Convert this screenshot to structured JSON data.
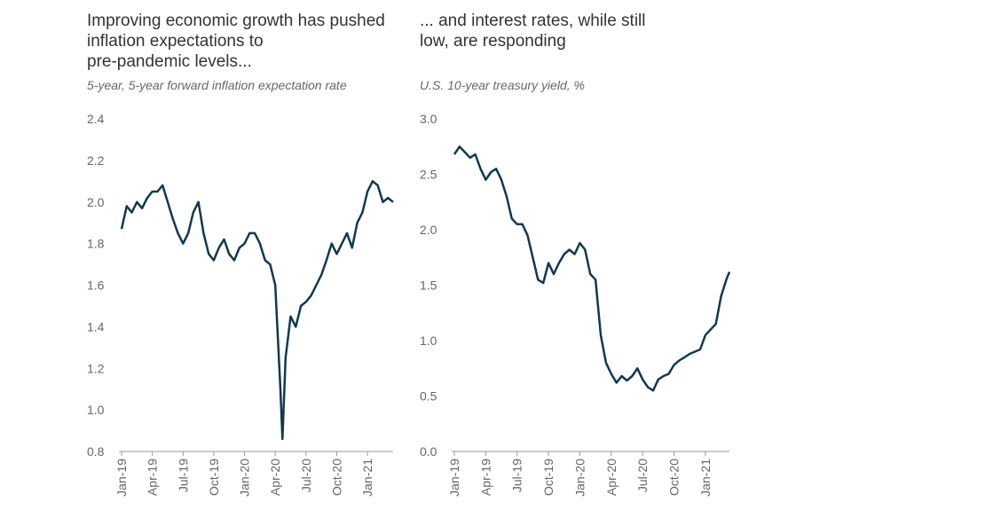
{
  "chart_data": [
    {
      "type": "line",
      "title": "Improving economic growth has pushed inflation expectations to pre-pandemic levels...",
      "subtitle": "5-year, 5-year forward inflation expectation rate",
      "x": [
        0,
        0.5,
        1,
        1.5,
        2,
        2.5,
        3,
        3.5,
        4,
        4.5,
        5,
        5.5,
        6,
        6.5,
        7,
        7.5,
        8,
        8.5,
        9,
        9.5,
        10,
        10.5,
        11,
        11.5,
        12,
        12.5,
        13,
        13.5,
        14,
        14.5,
        15,
        15.5,
        15.7,
        16,
        16.5,
        17,
        17.5,
        18,
        18.5,
        19,
        19.5,
        20,
        20.5,
        21,
        21.5,
        22,
        22.5,
        23,
        23.5,
        24,
        24.5,
        25,
        25.5,
        26,
        26.5
      ],
      "series": [
        {
          "name": "5y5y",
          "color": "#12384f",
          "values": [
            1.87,
            1.98,
            1.95,
            2.0,
            1.97,
            2.02,
            2.05,
            2.05,
            2.08,
            2.0,
            1.92,
            1.85,
            1.8,
            1.85,
            1.95,
            2.0,
            1.85,
            1.75,
            1.72,
            1.78,
            1.82,
            1.75,
            1.72,
            1.78,
            1.8,
            1.85,
            1.85,
            1.8,
            1.72,
            1.7,
            1.6,
            1.1,
            0.86,
            1.25,
            1.45,
            1.4,
            1.5,
            1.52,
            1.55,
            1.6,
            1.65,
            1.72,
            1.8,
            1.75,
            1.8,
            1.85,
            1.78,
            1.9,
            1.95,
            2.05,
            2.1,
            2.08,
            2.0,
            2.02,
            2.0
          ]
        }
      ],
      "xlim": [
        0,
        26.5
      ],
      "xticks": [
        {
          "value": 0,
          "label": "Jan-19"
        },
        {
          "value": 3,
          "label": "Apr-19"
        },
        {
          "value": 6,
          "label": "Jul-19"
        },
        {
          "value": 9,
          "label": "Oct-19"
        },
        {
          "value": 12,
          "label": "Jan-20"
        },
        {
          "value": 15,
          "label": "Apr-20"
        },
        {
          "value": 18,
          "label": "Jul-20"
        },
        {
          "value": 21,
          "label": "Oct-20"
        },
        {
          "value": 24,
          "label": "Jan-21"
        }
      ],
      "ylim": [
        0.8,
        2.4
      ],
      "yticks": [
        {
          "value": 0.8,
          "label": "0.8"
        },
        {
          "value": 1,
          "label": "1.0"
        },
        1.2,
        1.4,
        1.6,
        1.8,
        {
          "value": 2,
          "label": "2.0"
        },
        2.2,
        2.4
      ]
    },
    {
      "type": "line",
      "title": "... and interest rates, while still low, are responding",
      "subtitle": "U.S. 10-year treasury yield, %",
      "x": [
        0,
        0.5,
        1,
        1.5,
        2,
        2.5,
        3,
        3.5,
        4,
        4.5,
        5,
        5.5,
        6,
        6.5,
        7,
        7.5,
        8,
        8.5,
        9,
        9.5,
        10,
        10.5,
        11,
        11.5,
        12,
        12.5,
        13,
        13.5,
        14,
        14.5,
        15,
        15.5,
        16,
        16.5,
        17,
        17.5,
        18,
        18.5,
        19,
        19.5,
        20,
        20.5,
        21,
        21.5,
        22,
        22.5,
        23,
        23.5,
        24,
        24.5,
        25,
        25.5,
        26,
        26.3
      ],
      "series": [
        {
          "name": "10y",
          "color": "#12384f",
          "values": [
            2.68,
            2.75,
            2.7,
            2.65,
            2.68,
            2.55,
            2.45,
            2.52,
            2.55,
            2.45,
            2.3,
            2.1,
            2.05,
            2.05,
            1.95,
            1.75,
            1.55,
            1.52,
            1.7,
            1.6,
            1.7,
            1.78,
            1.82,
            1.78,
            1.88,
            1.82,
            1.6,
            1.55,
            1.05,
            0.8,
            0.7,
            0.62,
            0.68,
            0.64,
            0.68,
            0.75,
            0.65,
            0.58,
            0.55,
            0.65,
            0.68,
            0.7,
            0.78,
            0.82,
            0.85,
            0.88,
            0.9,
            0.92,
            1.05,
            1.1,
            1.15,
            1.4,
            1.55,
            1.62
          ]
        }
      ],
      "xlim": [
        0,
        26.3
      ],
      "xticks": [
        {
          "value": 0,
          "label": "Jan-19"
        },
        {
          "value": 3,
          "label": "Apr-19"
        },
        {
          "value": 6,
          "label": "Jul-19"
        },
        {
          "value": 9,
          "label": "Oct-19"
        },
        {
          "value": 12,
          "label": "Jan-20"
        },
        {
          "value": 15,
          "label": "Apr-20"
        },
        {
          "value": 18,
          "label": "Jul-20"
        },
        {
          "value": 21,
          "label": "Oct-20"
        },
        {
          "value": 24,
          "label": "Jan-21"
        }
      ],
      "ylim": [
        0,
        3
      ],
      "yticks": [
        {
          "value": 0,
          "label": "0.0"
        },
        {
          "value": 0.5,
          "label": "0.5"
        },
        {
          "value": 1,
          "label": "1.0"
        },
        {
          "value": 1.5,
          "label": "1.5"
        },
        {
          "value": 2,
          "label": "2.0"
        },
        {
          "value": 2.5,
          "label": "2.5"
        },
        {
          "value": 3,
          "label": "3.0"
        }
      ]
    }
  ]
}
